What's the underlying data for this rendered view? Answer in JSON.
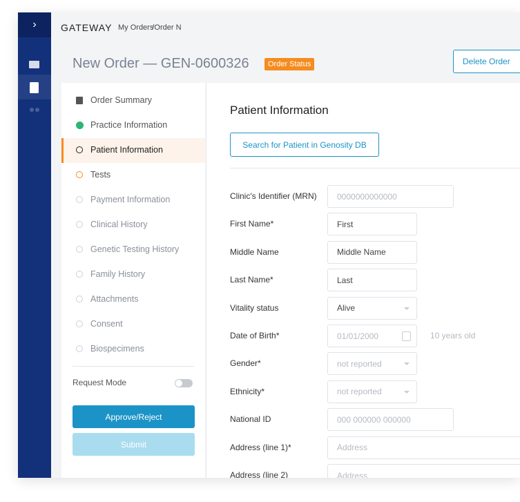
{
  "topbar": {
    "brand": "GATEWAY",
    "breadcrumb": [
      "My Orders",
      "/",
      "Order N"
    ]
  },
  "header": {
    "title": "New Order — GEN-0600326",
    "status": "Order Status",
    "delete_button": "Delete Order"
  },
  "nav": {
    "items": [
      {
        "label": "Order Summary",
        "state": "summary"
      },
      {
        "label": "Practice Information",
        "state": "done"
      },
      {
        "label": "Patient Information",
        "state": "active"
      },
      {
        "label": "Tests",
        "state": "progress"
      },
      {
        "label": "Payment Information",
        "state": "pending"
      },
      {
        "label": "Clinical History",
        "state": "pending"
      },
      {
        "label": "Genetic Testing History",
        "state": "pending"
      },
      {
        "label": "Family History",
        "state": "pending"
      },
      {
        "label": "Attachments",
        "state": "pending"
      },
      {
        "label": "Consent",
        "state": "pending"
      },
      {
        "label": "Biospecimens",
        "state": "pending"
      }
    ],
    "request_mode": "Request Mode",
    "approve_button": "Approve/Reject",
    "submit_button": "Submit"
  },
  "form": {
    "title": "Patient Information",
    "search_button": "Search for Patient in Genosity DB",
    "fields": [
      {
        "label": "Clinic's Identifier (MRN)",
        "text": "0000000000000",
        "style": "placeholder",
        "kind": "wide"
      },
      {
        "label": "First Name*",
        "text": "First",
        "style": "value",
        "kind": "text"
      },
      {
        "label": "Middle Name",
        "text": "Middle Name",
        "style": "value",
        "kind": "text"
      },
      {
        "label": "Last Name*",
        "text": "Last",
        "style": "value",
        "kind": "text"
      },
      {
        "label": "Vitality status",
        "text": "Alive",
        "style": "value",
        "kind": "select"
      },
      {
        "label": "Date of Birth*",
        "text": "01/01/2000",
        "style": "placeholder",
        "kind": "date",
        "note": "10 years old"
      },
      {
        "label": "Gender*",
        "text": "not reported",
        "style": "placeholder",
        "kind": "select"
      },
      {
        "label": "Ethnicity*",
        "text": "not reported",
        "style": "placeholder",
        "kind": "select"
      },
      {
        "label": "National ID",
        "text": "000 000000 000000",
        "style": "placeholder",
        "kind": "wide"
      },
      {
        "label": "Address (line 1)*",
        "text": "Address",
        "style": "placeholder",
        "kind": "full"
      },
      {
        "label": "Address (line 2)",
        "text": "Address",
        "style": "placeholder",
        "kind": "full"
      }
    ]
  }
}
